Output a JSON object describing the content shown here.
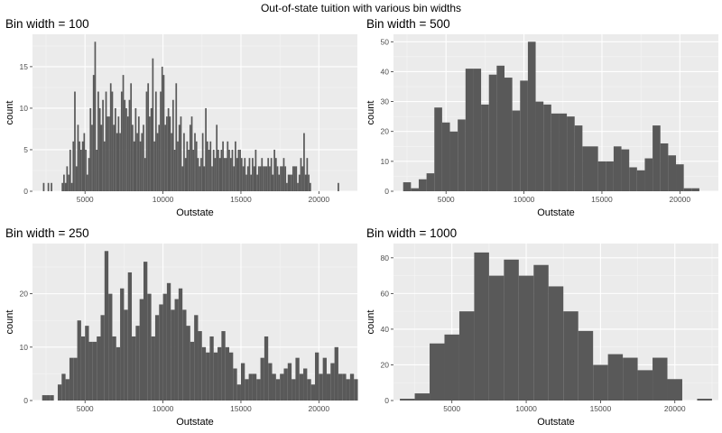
{
  "figure": {
    "title": "Out-of-state tuition with various bin widths"
  },
  "chart_data": [
    {
      "type": "bar",
      "title": "Bin width = 100",
      "xlabel": "Outstate",
      "ylabel": "count",
      "bin_width": 100,
      "xlim": [
        1630,
        22470
      ],
      "ylim": [
        0,
        18.9
      ],
      "xticks": [
        5000,
        10000,
        15000,
        20000
      ],
      "yticks": [
        0,
        5,
        10,
        15
      ],
      "grid": true,
      "bins": {
        "start": 2300,
        "width": 100,
        "counts": [
          1,
          0,
          0,
          1,
          0,
          1,
          0,
          0,
          0,
          0,
          0,
          0,
          1,
          2,
          1,
          3,
          2,
          5,
          1,
          6,
          12,
          3,
          8,
          6,
          5,
          6,
          7,
          5,
          2,
          4,
          10,
          8,
          14,
          18,
          5,
          12,
          10,
          8,
          11,
          6,
          12,
          9,
          9,
          13,
          12,
          8,
          10,
          7,
          9,
          7,
          12,
          14,
          11,
          10,
          9,
          11,
          13,
          8,
          6,
          10,
          7,
          9,
          6,
          7,
          8,
          4,
          12,
          13,
          9,
          10,
          16,
          6,
          12,
          7,
          8,
          12,
          15,
          14,
          8,
          9,
          10,
          9,
          7,
          11,
          5,
          13,
          6,
          8,
          9,
          3,
          7,
          4,
          6,
          5,
          8,
          9,
          5,
          7,
          6,
          4,
          3,
          4,
          7,
          3,
          10,
          6,
          5,
          6,
          3,
          5,
          4,
          8,
          5,
          4,
          5,
          6,
          4,
          4,
          6,
          5,
          4,
          5,
          3,
          6,
          4,
          5,
          5,
          4,
          3,
          4,
          2,
          3,
          4,
          2,
          4,
          3,
          5,
          2,
          3,
          3,
          4,
          3,
          3,
          3,
          4,
          3,
          4,
          2,
          5,
          4,
          3,
          2,
          3,
          3,
          4,
          3,
          1,
          2,
          2,
          2,
          3,
          3,
          3,
          1,
          2,
          4,
          3,
          7,
          2,
          4,
          2,
          1,
          0,
          0,
          0,
          0,
          0,
          0,
          0,
          0,
          0,
          0,
          0,
          0,
          0,
          0,
          0,
          0,
          0,
          1
        ]
      }
    },
    {
      "type": "bar",
      "title": "Bin width = 500",
      "xlabel": "Outstate",
      "ylabel": "count",
      "bin_width": 500,
      "xlim": [
        1630,
        22470
      ],
      "ylim": [
        0,
        52.5
      ],
      "xticks": [
        5000,
        10000,
        15000,
        20000
      ],
      "yticks": [
        0,
        10,
        20,
        30,
        40,
        50
      ],
      "grid": true,
      "bins": {
        "start": 2250,
        "width": 500,
        "counts": [
          3,
          1,
          4,
          6,
          28,
          23,
          20,
          24,
          41,
          41,
          29,
          39,
          42,
          38,
          27,
          37,
          50,
          30,
          29,
          26,
          26,
          25,
          22,
          15,
          15,
          10,
          10,
          15,
          14,
          8,
          7,
          11,
          22,
          16,
          12,
          9,
          1,
          1,
          0,
          0
        ]
      }
    },
    {
      "type": "bar",
      "title": "Bin width = 250",
      "xlabel": "Outstate",
      "ylabel": "count",
      "bin_width": 250,
      "xlim": [
        1630,
        22470
      ],
      "ylim": [
        0,
        29.4
      ],
      "xticks": [
        5000,
        10000,
        15000,
        20000
      ],
      "yticks": [
        0,
        10,
        20
      ],
      "grid": true,
      "bins": {
        "start": 2250,
        "width": 250,
        "counts": [
          1,
          1,
          1,
          0,
          3,
          5,
          4,
          8,
          8,
          15,
          12,
          14,
          11,
          11,
          12,
          16,
          28,
          20,
          12,
          10,
          21,
          17,
          24,
          12,
          14,
          19,
          26,
          20,
          12,
          16,
          18,
          20,
          22,
          17,
          19,
          21,
          17,
          14,
          11,
          16,
          13,
          10,
          9,
          12,
          9,
          10,
          13,
          10,
          9,
          6,
          3,
          7,
          4,
          5,
          5,
          4,
          8,
          12,
          7,
          5,
          4,
          5,
          6,
          7,
          4,
          8,
          5,
          6,
          4,
          3,
          9,
          5,
          8,
          5,
          7,
          10,
          5,
          5,
          4,
          5,
          4,
          0,
          0,
          0,
          0,
          0,
          0,
          0,
          0,
          0,
          0,
          1
        ]
      }
    },
    {
      "type": "bar",
      "title": "Bin width = 1000",
      "xlabel": "Outstate",
      "ylabel": "count",
      "bin_width": 1000,
      "xlim": [
        1070,
        22930
      ],
      "ylim": [
        0,
        88
      ],
      "xticks": [
        5000,
        10000,
        15000,
        20000
      ],
      "yticks": [
        0,
        20,
        40,
        60,
        80
      ],
      "grid": true,
      "bins": {
        "start": 1500,
        "width": 1000,
        "counts": [
          1,
          4,
          32,
          37,
          50,
          83,
          70,
          79,
          70,
          76,
          64,
          50,
          39,
          20,
          26,
          24,
          17,
          24,
          12,
          0,
          1
        ]
      }
    }
  ]
}
